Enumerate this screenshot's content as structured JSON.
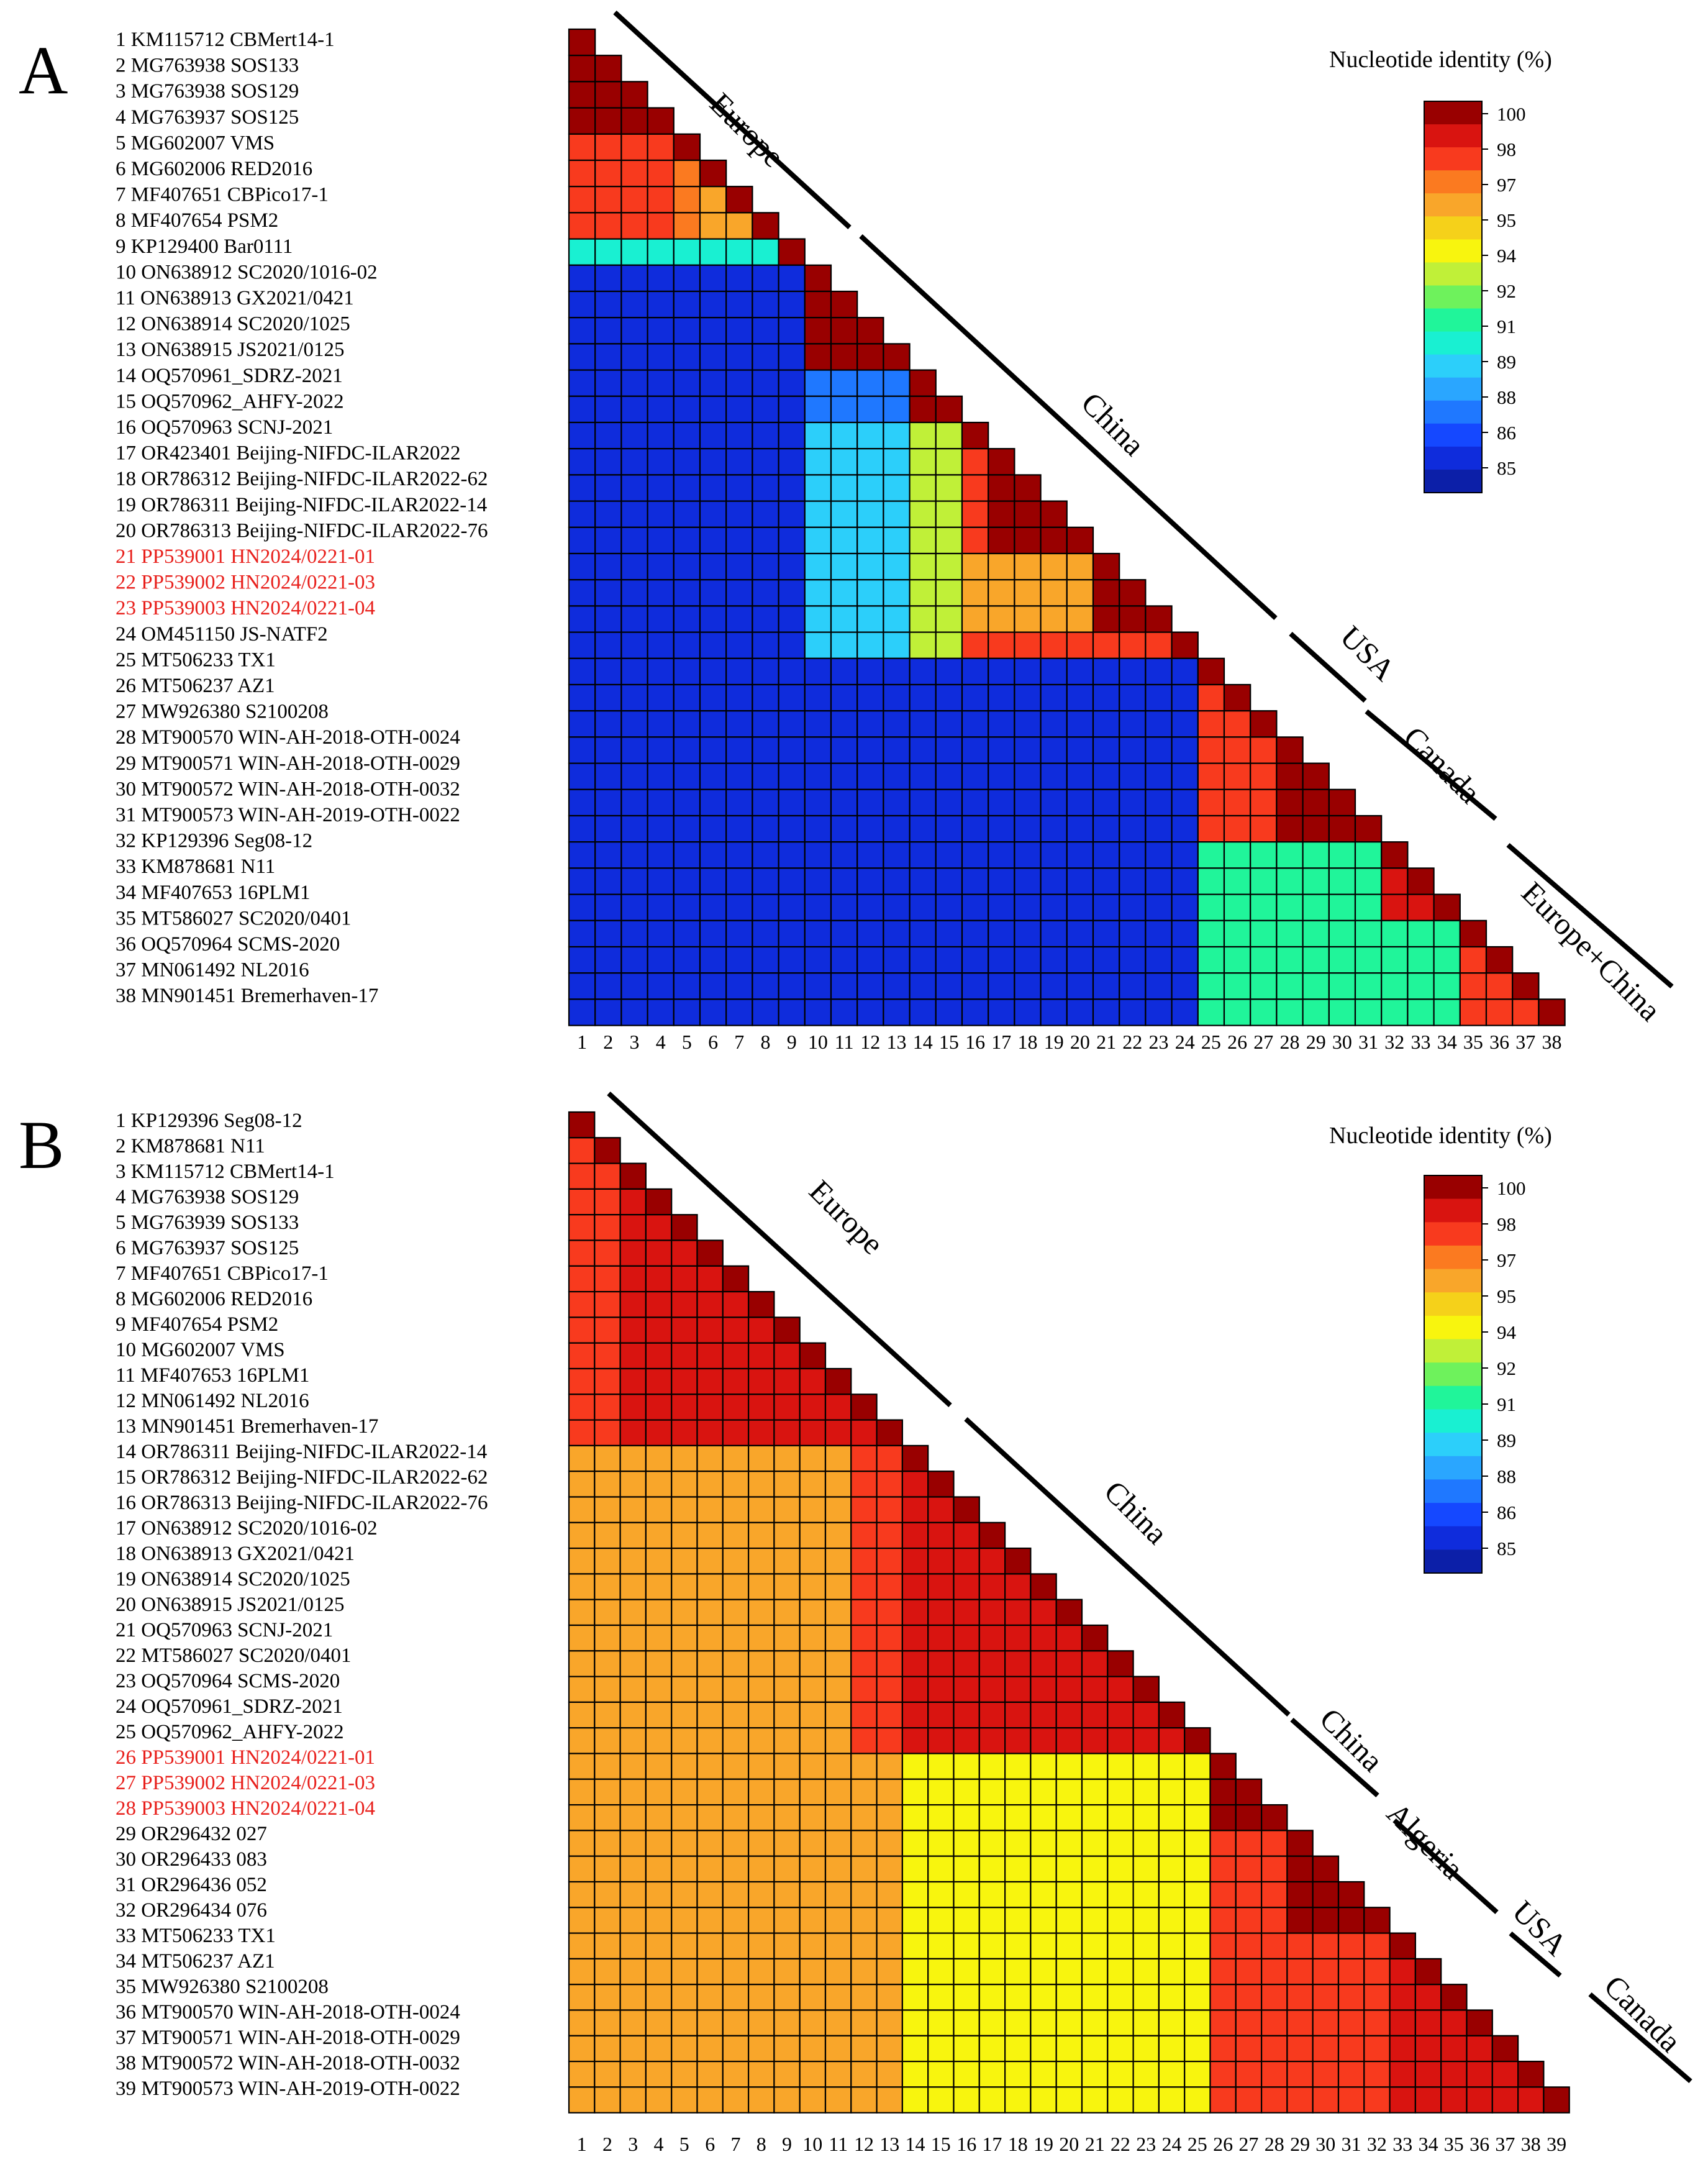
{
  "chart_data": [
    {
      "type": "heatmap",
      "panel": "A",
      "shape": "lower-triangular pairwise identity matrix",
      "legend": {
        "title": "Nucleotide identity (%)",
        "ticks": [
          "100",
          "98",
          "97",
          "95",
          "94",
          "92",
          "91",
          "89",
          "88",
          "86",
          "85"
        ]
      },
      "regions": [
        "Europe",
        "China",
        "USA",
        "Canada",
        "Europe+China"
      ],
      "highlight_color": "#e8201c",
      "row_labels": [
        {
          "text": "1 KM115712 CBMert14-1",
          "highlight": false
        },
        {
          "text": "2 MG763938 SOS133",
          "highlight": false
        },
        {
          "text": "3 MG763938 SOS129",
          "highlight": false
        },
        {
          "text": "4 MG763937 SOS125",
          "highlight": false
        },
        {
          "text": "5 MG602007 VMS",
          "highlight": false
        },
        {
          "text": "6 MG602006 RED2016",
          "highlight": false
        },
        {
          "text": "7 MF407651 CBPico17-1",
          "highlight": false
        },
        {
          "text": "8 MF407654 PSM2",
          "highlight": false
        },
        {
          "text": "9 KP129400 Bar0111",
          "highlight": false
        },
        {
          "text": "10 ON638912 SC2020/1016-02",
          "highlight": false
        },
        {
          "text": "11 ON638913 GX2021/0421",
          "highlight": false
        },
        {
          "text": "12 ON638914 SC2020/1025",
          "highlight": false
        },
        {
          "text": "13 ON638915 JS2021/0125",
          "highlight": false
        },
        {
          "text": "14 OQ570961_SDRZ-2021",
          "highlight": false
        },
        {
          "text": "15 OQ570962_AHFY-2022",
          "highlight": false
        },
        {
          "text": "16 OQ570963 SCNJ-2021",
          "highlight": false
        },
        {
          "text": "17 OR423401 Beijing-NIFDC-ILAR2022",
          "highlight": false
        },
        {
          "text": "18 OR786312 Beijing-NIFDC-ILAR2022-62",
          "highlight": false
        },
        {
          "text": "19 OR786311 Beijing-NIFDC-ILAR2022-14",
          "highlight": false
        },
        {
          "text": "20 OR786313 Beijing-NIFDC-ILAR2022-76",
          "highlight": false
        },
        {
          "text": "21 PP539001 HN2024/0221-01",
          "highlight": true
        },
        {
          "text": "22 PP539002 HN2024/0221-03",
          "highlight": true
        },
        {
          "text": "23 PP539003 HN2024/0221-04",
          "highlight": true
        },
        {
          "text": "24 OM451150 JS-NATF2",
          "highlight": false
        },
        {
          "text": "25 MT506233 TX1",
          "highlight": false
        },
        {
          "text": "26 MT506237 AZ1",
          "highlight": false
        },
        {
          "text": "27 MW926380 S2100208",
          "highlight": false
        },
        {
          "text": "28 MT900570 WIN-AH-2018-OTH-0024",
          "highlight": false
        },
        {
          "text": "29 MT900571 WIN-AH-2018-OTH-0029",
          "highlight": false
        },
        {
          "text": "30 MT900572 WIN-AH-2018-OTH-0032",
          "highlight": false
        },
        {
          "text": "31 MT900573 WIN-AH-2019-OTH-0022",
          "highlight": false
        },
        {
          "text": "32 KP129396 Seg08-12",
          "highlight": false
        },
        {
          "text": "33 KM878681 N11",
          "highlight": false
        },
        {
          "text": "34 MF407653 16PLM1",
          "highlight": false
        },
        {
          "text": "35 MT586027 SC2020/0401",
          "highlight": false
        },
        {
          "text": "36 OQ570964 SCMS-2020",
          "highlight": false
        },
        {
          "text": "37 MN061492 NL2016",
          "highlight": false
        },
        {
          "text": "38 MN901451 Bremerhaven-17",
          "highlight": false
        }
      ],
      "column_labels": [
        "1",
        "2",
        "3",
        "4",
        "5",
        "6",
        "7",
        "8",
        "9",
        "10",
        "11",
        "12",
        "13",
        "14",
        "15",
        "16",
        "17",
        "18",
        "19",
        "20",
        "21",
        "22",
        "23",
        "24",
        "25",
        "26",
        "27",
        "28",
        "29",
        "30",
        "31",
        "32",
        "33",
        "34",
        "35",
        "36",
        "37",
        "38"
      ],
      "identity_groups_description": "approximate estimated identity (%) between sequence groups by sequence index ranges",
      "diagonal_value": 100,
      "default_value": 85.5,
      "blocks": [
        {
          "rows": [
            2,
            4
          ],
          "cols": [
            1,
            3
          ],
          "value": 99.5
        },
        {
          "rows": [
            5,
            8
          ],
          "cols": [
            1,
            4
          ],
          "value": 97.5
        },
        {
          "rows": [
            6,
            8
          ],
          "cols": [
            5,
            5
          ],
          "value": 97
        },
        {
          "rows": [
            7,
            8
          ],
          "cols": [
            6,
            6
          ],
          "value": 96
        },
        {
          "rows": [
            8,
            8
          ],
          "cols": [
            7,
            7
          ],
          "value": 96
        },
        {
          "rows": [
            9,
            9
          ],
          "cols": [
            1,
            8
          ],
          "value": 90.5
        },
        {
          "rows": [
            11,
            13
          ],
          "cols": [
            10,
            12
          ],
          "value": 99.5
        },
        {
          "rows": [
            14,
            15
          ],
          "cols": [
            10,
            13
          ],
          "value": 87.5
        },
        {
          "rows": [
            15,
            15
          ],
          "cols": [
            14,
            14
          ],
          "value": 99.5
        },
        {
          "rows": [
            16,
            24
          ],
          "cols": [
            10,
            13
          ],
          "value": 89.5
        },
        {
          "rows": [
            16,
            24
          ],
          "cols": [
            14,
            15
          ],
          "value": 92.5
        },
        {
          "rows": [
            17,
            20
          ],
          "cols": [
            16,
            16
          ],
          "value": 97.5
        },
        {
          "rows": [
            18,
            20
          ],
          "cols": [
            17,
            19
          ],
          "value": 99.5
        },
        {
          "rows": [
            21,
            23
          ],
          "cols": [
            16,
            20
          ],
          "value": 96
        },
        {
          "rows": [
            22,
            23
          ],
          "cols": [
            21,
            22
          ],
          "value": 99.5
        },
        {
          "rows": [
            24,
            24
          ],
          "cols": [
            16,
            23
          ],
          "value": 97.5
        },
        {
          "rows": [
            26,
            31
          ],
          "cols": [
            25,
            27
          ],
          "value": 98
        },
        {
          "rows": [
            28,
            31
          ],
          "cols": [
            28,
            30
          ],
          "value": 99.5
        },
        {
          "rows": [
            32,
            38
          ],
          "cols": [
            25,
            31
          ],
          "value": 91.5
        },
        {
          "rows": [
            33,
            34
          ],
          "cols": [
            32,
            33
          ],
          "value": 98.5
        },
        {
          "rows": [
            35,
            38
          ],
          "cols": [
            32,
            34
          ],
          "value": 91
        },
        {
          "rows": [
            36,
            38
          ],
          "cols": [
            35,
            37
          ],
          "value": 98
        }
      ]
    },
    {
      "type": "heatmap",
      "panel": "B",
      "shape": "lower-triangular pairwise identity matrix",
      "legend": {
        "title": "Nucleotide identity (%)",
        "ticks": [
          "100",
          "98",
          "97",
          "95",
          "94",
          "92",
          "91",
          "89",
          "88",
          "86",
          "85"
        ]
      },
      "regions": [
        "Europe",
        "China",
        "China",
        "Algeria",
        "USA",
        "Canada"
      ],
      "highlight_color": "#e8201c",
      "row_labels": [
        {
          "text": "1 KP129396 Seg08-12",
          "highlight": false
        },
        {
          "text": "2 KM878681 N11",
          "highlight": false
        },
        {
          "text": "3 KM115712 CBMert14-1",
          "highlight": false
        },
        {
          "text": "4 MG763938 SOS129",
          "highlight": false
        },
        {
          "text": "5 MG763939 SOS133",
          "highlight": false
        },
        {
          "text": "6 MG763937 SOS125",
          "highlight": false
        },
        {
          "text": "7 MF407651 CBPico17-1",
          "highlight": false
        },
        {
          "text": "8 MG602006 RED2016",
          "highlight": false
        },
        {
          "text": "9 MF407654 PSM2",
          "highlight": false
        },
        {
          "text": "10 MG602007 VMS",
          "highlight": false
        },
        {
          "text": "11 MF407653 16PLM1",
          "highlight": false
        },
        {
          "text": "12 MN061492 NL2016",
          "highlight": false
        },
        {
          "text": "13 MN901451 Bremerhaven-17",
          "highlight": false
        },
        {
          "text": "14 OR786311 Beijing-NIFDC-ILAR2022-14",
          "highlight": false
        },
        {
          "text": "15 OR786312 Beijing-NIFDC-ILAR2022-62",
          "highlight": false
        },
        {
          "text": "16 OR786313 Beijing-NIFDC-ILAR2022-76",
          "highlight": false
        },
        {
          "text": "17 ON638912 SC2020/1016-02",
          "highlight": false
        },
        {
          "text": "18 ON638913 GX2021/0421",
          "highlight": false
        },
        {
          "text": "19 ON638914 SC2020/1025",
          "highlight": false
        },
        {
          "text": "20 ON638915 JS2021/0125",
          "highlight": false
        },
        {
          "text": "21 OQ570963 SCNJ-2021",
          "highlight": false
        },
        {
          "text": "22 MT586027 SC2020/0401",
          "highlight": false
        },
        {
          "text": "23 OQ570964 SCMS-2020",
          "highlight": false
        },
        {
          "text": "24 OQ570961_SDRZ-2021",
          "highlight": false
        },
        {
          "text": "25 OQ570962_AHFY-2022",
          "highlight": false
        },
        {
          "text": "26 PP539001 HN2024/0221-01",
          "highlight": true
        },
        {
          "text": "27 PP539002 HN2024/0221-03",
          "highlight": true
        },
        {
          "text": "28 PP539003 HN2024/0221-04",
          "highlight": true
        },
        {
          "text": "29 OR296432 027",
          "highlight": false
        },
        {
          "text": "30 OR296433 083",
          "highlight": false
        },
        {
          "text": "31 OR296436 052",
          "highlight": false
        },
        {
          "text": "32 OR296434 076",
          "highlight": false
        },
        {
          "text": "33 MT506233 TX1",
          "highlight": false
        },
        {
          "text": "34 MT506237 AZ1",
          "highlight": false
        },
        {
          "text": "35 MW926380 S2100208",
          "highlight": false
        },
        {
          "text": "36 MT900570 WIN-AH-2018-OTH-0024",
          "highlight": false
        },
        {
          "text": "37 MT900571 WIN-AH-2018-OTH-0029",
          "highlight": false
        },
        {
          "text": "38 MT900572 WIN-AH-2018-OTH-0032",
          "highlight": false
        },
        {
          "text": "39 MT900573 WIN-AH-2019-OTH-0022",
          "highlight": false
        }
      ],
      "column_labels": [
        "1",
        "2",
        "3",
        "4",
        "5",
        "6",
        "7",
        "8",
        "9",
        "10",
        "11",
        "12",
        "13",
        "14",
        "15",
        "16",
        "17",
        "18",
        "19",
        "20",
        "21",
        "22",
        "23",
        "24",
        "25",
        "26",
        "27",
        "28",
        "29",
        "30",
        "31",
        "32",
        "33",
        "34",
        "35",
        "36",
        "37",
        "38",
        "39"
      ],
      "identity_groups_description": "approximate estimated identity (%) between sequence groups by sequence index ranges",
      "diagonal_value": 100,
      "default_value": 97.5,
      "blocks": [
        {
          "rows": [
            4,
            13
          ],
          "cols": [
            3,
            12
          ],
          "value": 98.5
        },
        {
          "rows": [
            14,
            39
          ],
          "cols": [
            1,
            11
          ],
          "value": 95.5
        },
        {
          "rows": [
            14,
            16
          ],
          "cols": [
            1,
            11
          ],
          "value": 95
        },
        {
          "rows": [
            14,
            25
          ],
          "cols": [
            12,
            13
          ],
          "value": 97.5
        },
        {
          "rows": [
            15,
            25
          ],
          "cols": [
            14,
            24
          ],
          "value": 98.5
        },
        {
          "rows": [
            26,
            39
          ],
          "cols": [
            12,
            13
          ],
          "value": 95.5
        },
        {
          "rows": [
            26,
            39
          ],
          "cols": [
            14,
            25
          ],
          "value": 94
        },
        {
          "rows": [
            27,
            39
          ],
          "cols": [
            26,
            38
          ],
          "value": 97.5
        },
        {
          "rows": [
            27,
            28
          ],
          "cols": [
            26,
            27
          ],
          "value": 99.5
        },
        {
          "rows": [
            30,
            32
          ],
          "cols": [
            29,
            31
          ],
          "value": 99.5
        },
        {
          "rows": [
            34,
            39
          ],
          "cols": [
            33,
            38
          ],
          "value": 99
        }
      ]
    }
  ]
}
